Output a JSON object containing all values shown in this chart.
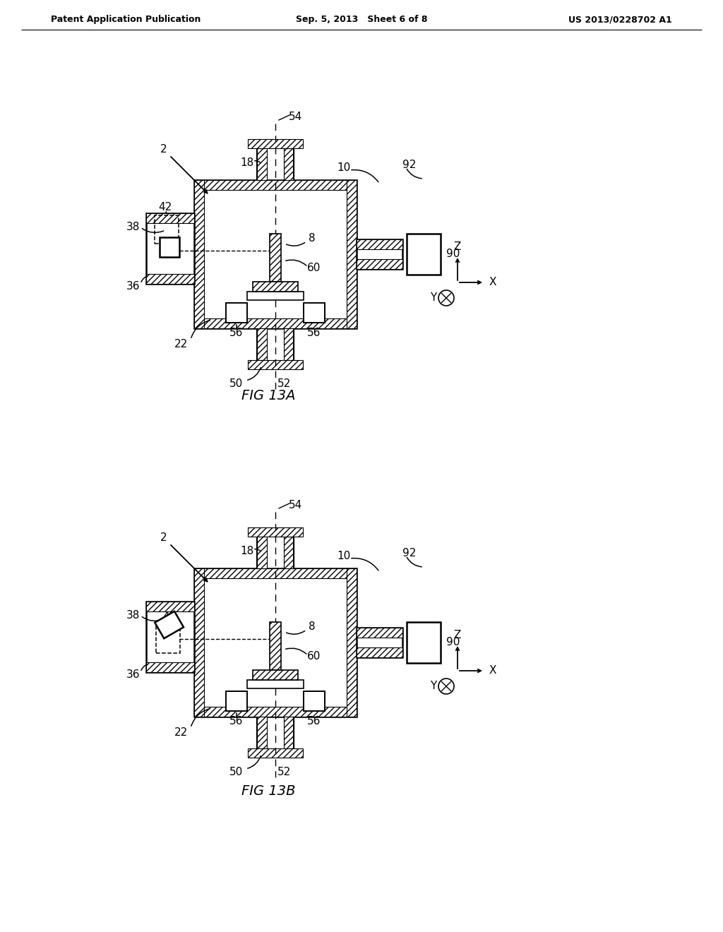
{
  "background_color": "#ffffff",
  "page_title_left": "Patent Application Publication",
  "page_title_center": "Sep. 5, 2013   Sheet 6 of 8",
  "page_title_right": "US 2013/0228702 A1",
  "fig_label_A": "FIG 13A",
  "fig_label_B": "FIG 13B"
}
